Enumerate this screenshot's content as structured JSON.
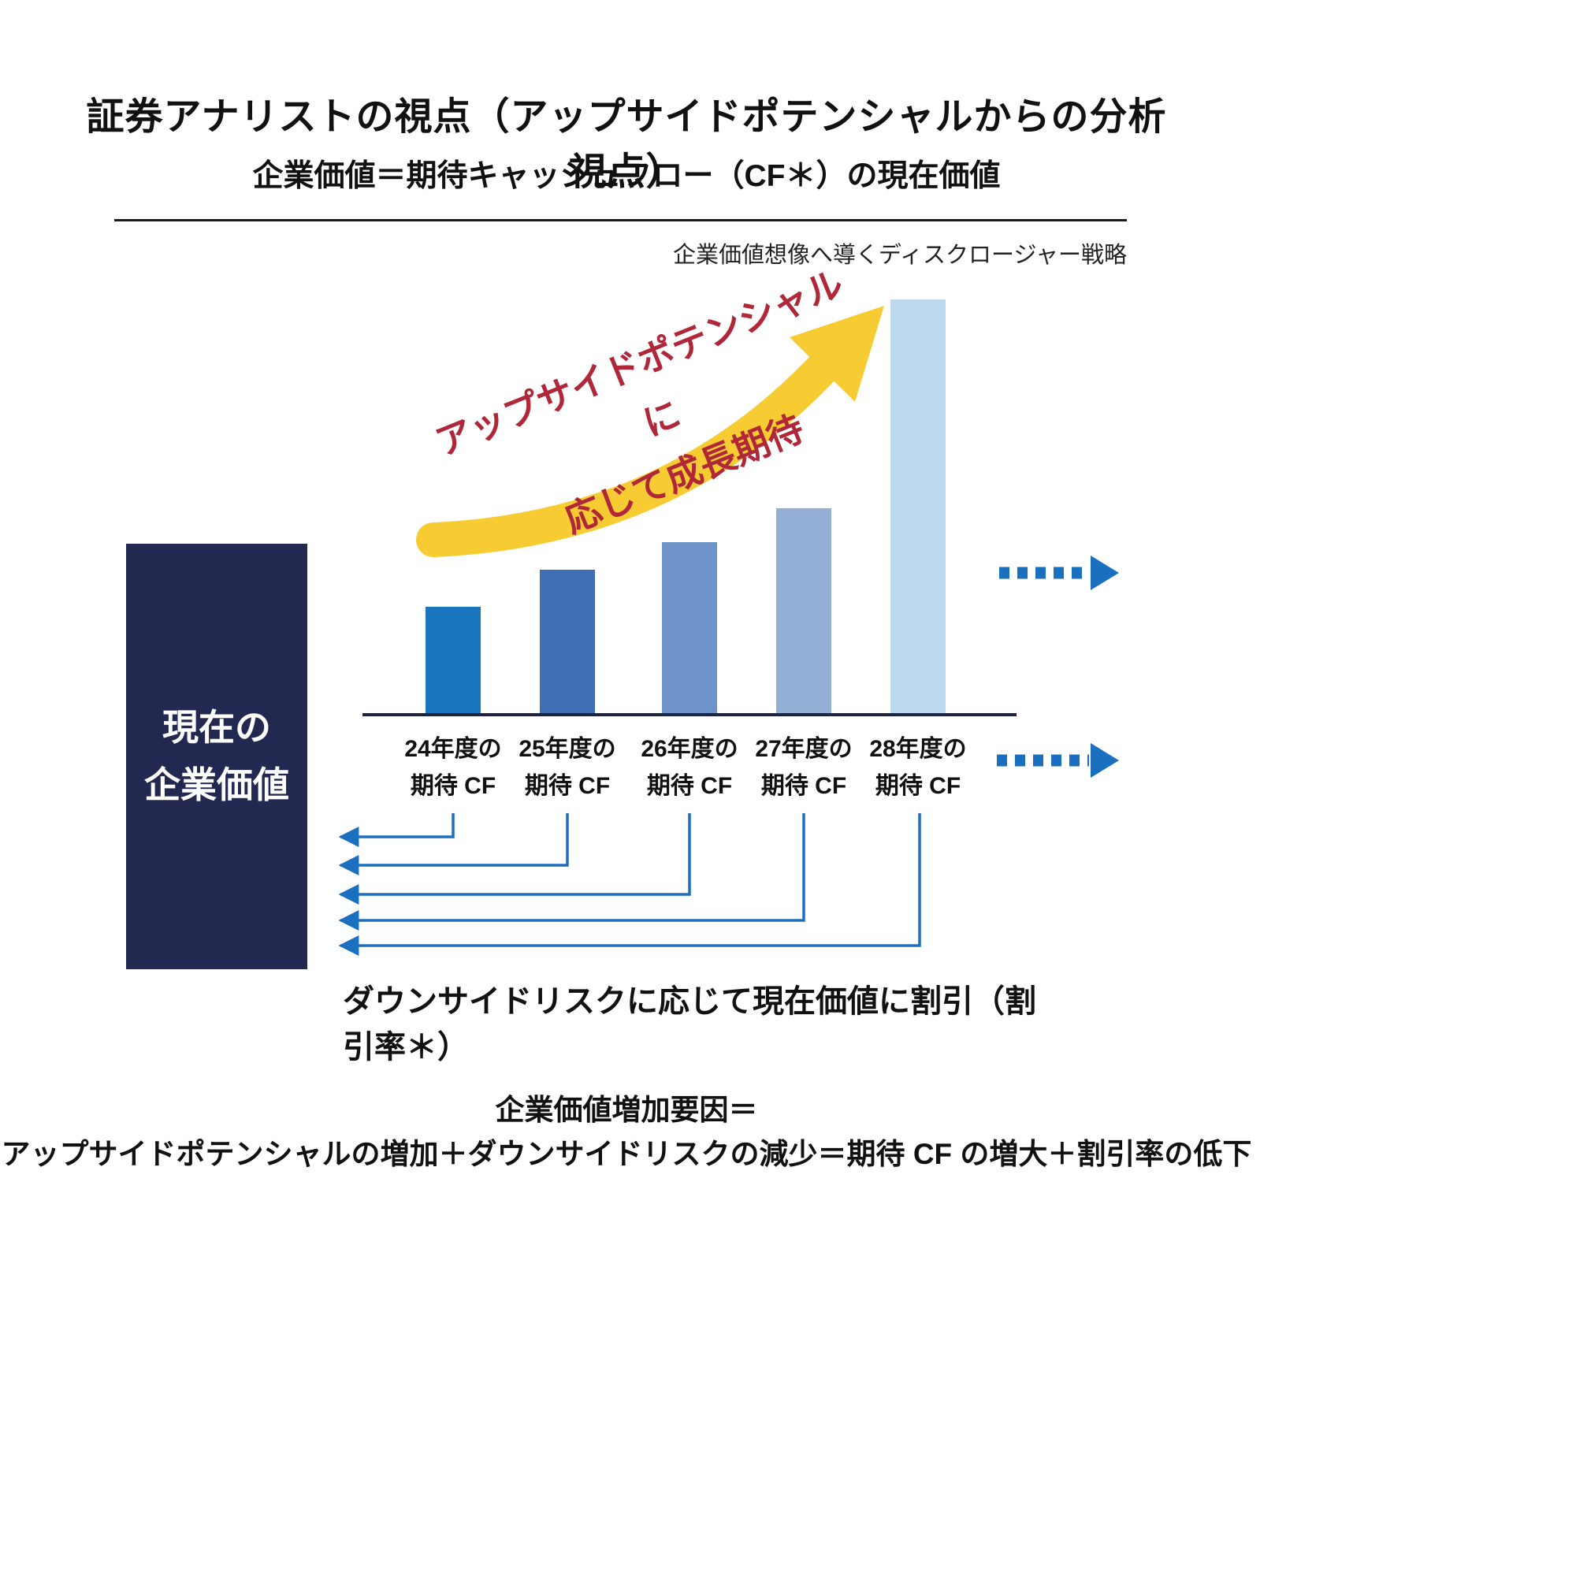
{
  "header": {
    "title": "証券アナリストの視点（アップサイドポテンシャルからの分析視点）",
    "subtitle": "企業価値＝期待キャッシュフロー（CF＊）の現在価値",
    "caption": "企業価値想像へ導くディスクロージャー戦略"
  },
  "current_value_box": {
    "line1": "現在の",
    "line2": "企業価値"
  },
  "growth_annotation": {
    "line1": "アップサイドポテンシャルに",
    "line2": "応じて成長期待",
    "color": "#b0273a"
  },
  "discount_note": "ダウンサイドリスクに応じて現在価値に割引（割引率＊）",
  "footer": {
    "line1": "企業価値増加要因＝",
    "line2": "アップサイドポテンシャルの増加＋ダウンサイドリスクの減少＝期待 CF の増大＋割引率の低下"
  },
  "chart_data": {
    "type": "bar",
    "categories": [
      [
        "24年度の",
        "期待 CF"
      ],
      [
        "25年度の",
        "期待 CF"
      ],
      [
        "26年度の",
        "期待 CF"
      ],
      [
        "27年度の",
        "期待 CF"
      ],
      [
        "28年度の",
        "期待 CF"
      ]
    ],
    "values": [
      135,
      182,
      217,
      260,
      525
    ],
    "value_note": "relative bar heights, no numeric labels shown",
    "colors": [
      "#1b75bc",
      "#3f6eb5",
      "#6e93c9",
      "#93afd6",
      "#bdd9ee"
    ],
    "xlabel": "",
    "ylabel": "",
    "legend": "none",
    "grid": false
  },
  "palette": {
    "navy_box": "#232850",
    "axis": "#1c2442",
    "arrow_yellow": "#f7cc33",
    "arrow_blue": "#1b6fbf",
    "annotation_red": "#b0273a"
  }
}
